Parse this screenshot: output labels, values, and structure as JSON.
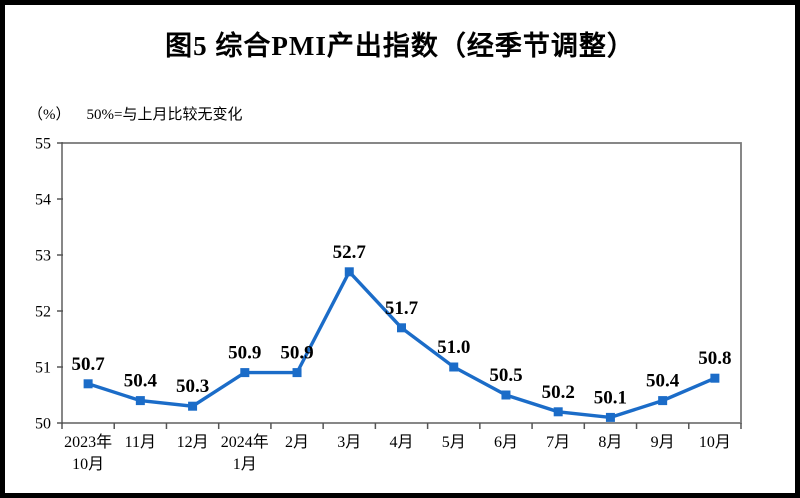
{
  "figure": {
    "border_color": "#000000",
    "background": "#ffffff"
  },
  "chart_data": {
    "type": "line",
    "title": "图5  综合PMI产出指数（经季节调整）",
    "unit_label": "（%）",
    "note": "50%=与上月比较无变化",
    "categories": [
      "2023年\n10月",
      "11月",
      "12月",
      "2024年\n1月",
      "2月",
      "3月",
      "4月",
      "5月",
      "6月",
      "7月",
      "8月",
      "9月",
      "10月"
    ],
    "values": [
      50.7,
      50.4,
      50.3,
      50.9,
      50.9,
      52.7,
      51.7,
      51.0,
      50.5,
      50.2,
      50.1,
      50.4,
      50.8
    ],
    "value_labels": [
      "50.7",
      "50.4",
      "50.3",
      "50.9",
      "50.9",
      "52.7",
      "51.7",
      "51.0",
      "50.5",
      "50.2",
      "50.1",
      "50.4",
      "50.8"
    ],
    "ylim": [
      50,
      55
    ],
    "ytick_interval": 1,
    "ytick_labels": [
      "50",
      "51",
      "52",
      "53",
      "54",
      "55"
    ],
    "grid": false,
    "legend_position": "none",
    "line_color": "#1B6CC8",
    "marker": "square",
    "axis_color": "#7a7a7a",
    "tick_color": "#555555",
    "text_color": "#000000"
  }
}
